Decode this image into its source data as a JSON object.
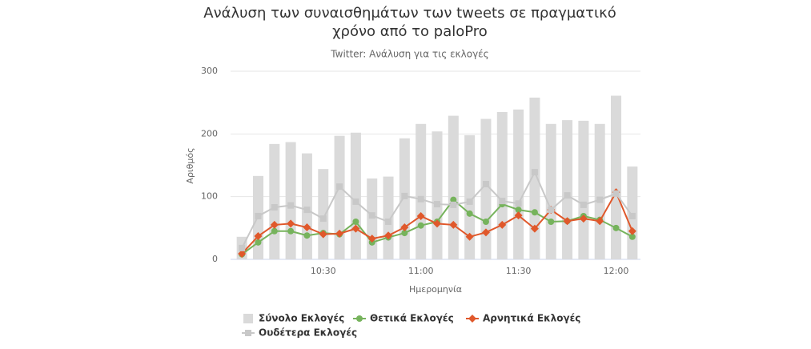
{
  "chart_data": {
    "type": "bar",
    "title": "Ανάλυση των συναισθημάτων των tweets σε πραγματικό",
    "title_line2": "χρόνο από το paloPro",
    "subtitle": "Twitter: Ανάλυση για τις εκλογές",
    "y_label": "Αριθμός",
    "x_label": "Ημερομηνία",
    "categories": [
      null,
      null,
      null,
      null,
      null,
      "10:30",
      null,
      null,
      null,
      null,
      null,
      "11:00",
      null,
      null,
      null,
      null,
      null,
      "11:30",
      null,
      null,
      null,
      null,
      null,
      "12:00",
      null
    ],
    "ylim": [
      0,
      300
    ],
    "yticks": [
      0,
      100,
      200,
      300
    ],
    "grid": true,
    "series": [
      {
        "name": "Σύνολο Εκλογές",
        "type": "bar",
        "marker": "square",
        "color": "#dadada",
        "values": [
          36,
          133,
          184,
          187,
          169,
          144,
          197,
          202,
          129,
          132,
          193,
          216,
          204,
          229,
          198,
          224,
          235,
          239,
          258,
          216,
          222,
          221,
          216,
          261,
          148
        ]
      },
      {
        "name": "Θετικά Εκλογές",
        "type": "line",
        "marker": "circle",
        "color": "#76b35c",
        "values": [
          8,
          27,
          45,
          45,
          38,
          42,
          40,
          60,
          27,
          35,
          42,
          54,
          60,
          95,
          73,
          60,
          88,
          79,
          75,
          60,
          61,
          69,
          63,
          50,
          36
        ]
      },
      {
        "name": "Αρνητικά Εκλογές",
        "type": "line",
        "marker": "diamond",
        "color": "#e0582b",
        "values": [
          9,
          37,
          55,
          57,
          51,
          40,
          41,
          49,
          33,
          38,
          51,
          69,
          57,
          55,
          36,
          43,
          55,
          70,
          49,
          79,
          61,
          65,
          61,
          107,
          45
        ]
      },
      {
        "name": "Ουδέτερα Εκλογές",
        "type": "line",
        "marker": "square",
        "color": "#c8c8c8",
        "values": [
          18,
          69,
          83,
          86,
          79,
          65,
          116,
          92,
          70,
          60,
          101,
          96,
          88,
          87,
          92,
          120,
          93,
          89,
          139,
          79,
          102,
          87,
          95,
          105,
          69
        ]
      }
    ]
  }
}
